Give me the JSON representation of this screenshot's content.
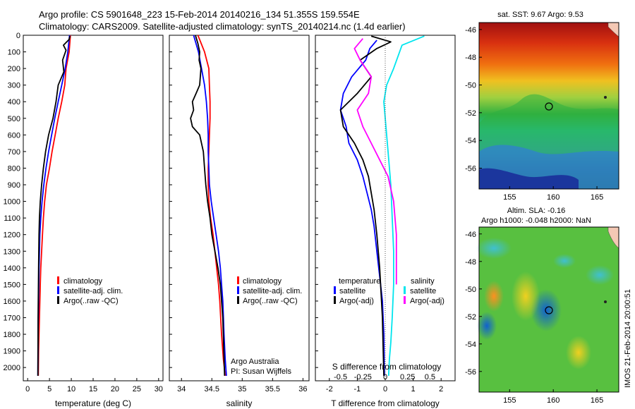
{
  "header": {
    "line1": "Argo profile: CS 5901648_223 15-Feb-2014 20140216_134 51.355S 159.554E",
    "line2": "Climatology: CARS2009. Satellite-adjusted climatology: synTS_20140214.nc (1.4d earlier)"
  },
  "side_label": "IMOS 21-Feb-2014 20:00:51",
  "colors": {
    "climatology": "#ff0000",
    "satellite": "#0000ff",
    "argo": "#000000",
    "salinity_satellite": "#00e5ee",
    "salinity_argo": "#ff00ff"
  },
  "chart_data": [
    {
      "type": "line",
      "panel": "temperature",
      "xlabel": "temperature (deg C)",
      "ylabel": "",
      "xlim": [
        -1,
        31
      ],
      "ylim": [
        2080,
        0
      ],
      "xticks": [
        0,
        5,
        10,
        15,
        20,
        25,
        30
      ],
      "yticks": [
        0,
        100,
        200,
        300,
        400,
        500,
        600,
        700,
        800,
        900,
        1000,
        1100,
        1200,
        1300,
        1400,
        1500,
        1600,
        1700,
        1800,
        1900,
        2000
      ],
      "legend": [
        "climatology",
        "satellite-adj. clim.",
        "Argo(..raw -QC)"
      ],
      "series": [
        {
          "name": "climatology",
          "color": "#ff0000",
          "x": [
            9.8,
            9.5,
            8.8,
            8.5,
            7.8,
            7.0,
            6.3,
            5.6,
            5.0,
            4.3,
            3.9,
            3.6,
            3.4,
            3.2,
            3.0,
            2.9,
            2.8,
            2.7,
            2.6,
            2.5,
            2.45
          ],
          "y": [
            0,
            100,
            200,
            300,
            400,
            500,
            600,
            700,
            800,
            900,
            1000,
            1100,
            1200,
            1300,
            1400,
            1500,
            1600,
            1700,
            1800,
            1900,
            2050
          ]
        },
        {
          "name": "satellite-adj. clim.",
          "color": "#0000ff",
          "x": [
            9.6,
            9.2,
            8.6,
            7.8,
            7.0,
            6.2,
            5.5,
            4.8,
            4.2,
            3.7,
            3.3,
            3.0,
            2.8,
            2.7,
            2.6,
            2.55,
            2.5,
            2.45,
            2.4,
            2.35
          ],
          "y": [
            0,
            100,
            200,
            300,
            400,
            500,
            600,
            700,
            800,
            900,
            1000,
            1100,
            1200,
            1300,
            1400,
            1500,
            1600,
            1700,
            1800,
            2050
          ]
        },
        {
          "name": "Argo(..raw -QC)",
          "color": "#000000",
          "x": [
            9.7,
            9.5,
            8.2,
            8.8,
            8.0,
            8.3,
            7.0,
            6.5,
            5.8,
            4.8,
            4.1,
            3.6,
            3.2,
            2.9,
            2.7,
            2.6,
            2.5,
            2.4,
            2.35
          ],
          "y": [
            5,
            25,
            60,
            90,
            150,
            220,
            300,
            400,
            500,
            600,
            700,
            800,
            900,
            1000,
            1100,
            1200,
            1400,
            1700,
            2050
          ]
        }
      ]
    },
    {
      "type": "line",
      "panel": "salinity",
      "xlabel": "salinity",
      "ylabel": "",
      "xlim": [
        33.8,
        36.1
      ],
      "ylim": [
        2080,
        0
      ],
      "xticks": [
        34,
        34.5,
        35,
        35.5,
        36
      ],
      "legend": [
        "climatology",
        "satellite-adj. clim.",
        "Argo(..raw -QC)"
      ],
      "annotations": [
        "Argo Australia",
        "PI: Susan Wijffels"
      ],
      "series": [
        {
          "name": "climatology",
          "color": "#ff0000",
          "x": [
            34.27,
            34.38,
            34.45,
            34.46,
            34.47,
            34.47,
            34.46,
            34.45,
            34.44,
            34.44,
            34.45,
            34.48,
            34.52,
            34.55,
            34.58,
            34.61,
            34.63,
            34.66,
            34.69,
            34.72
          ],
          "y": [
            0,
            100,
            200,
            300,
            400,
            500,
            600,
            700,
            800,
            900,
            1000,
            1100,
            1200,
            1300,
            1400,
            1500,
            1600,
            1800,
            1950,
            2050
          ]
        },
        {
          "name": "satellite-adj. clim.",
          "color": "#0000ff",
          "x": [
            34.2,
            34.28,
            34.33,
            34.38,
            34.41,
            34.43,
            34.44,
            34.44,
            34.45,
            34.46,
            34.49,
            34.53,
            34.57,
            34.61,
            34.64,
            34.66,
            34.68,
            34.7,
            34.72,
            34.74
          ],
          "y": [
            0,
            100,
            200,
            300,
            400,
            500,
            600,
            700,
            800,
            900,
            1000,
            1100,
            1200,
            1300,
            1400,
            1500,
            1600,
            1800,
            1950,
            2050
          ]
        },
        {
          "name": "Argo(..raw -QC)",
          "color": "#000000",
          "x": [
            34.23,
            34.27,
            34.3,
            34.29,
            34.32,
            34.3,
            34.24,
            34.18,
            34.2,
            34.15,
            34.18,
            34.3,
            34.36,
            34.38,
            34.4,
            34.43,
            34.47,
            34.5,
            34.55,
            34.6,
            34.64,
            34.68,
            34.71
          ],
          "y": [
            0,
            50,
            100,
            150,
            200,
            300,
            350,
            400,
            450,
            500,
            550,
            600,
            700,
            800,
            900,
            1000,
            1100,
            1200,
            1300,
            1400,
            1500,
            1700,
            2050
          ]
        }
      ]
    },
    {
      "type": "line",
      "panel": "difference",
      "xlabel": "T difference from climatology",
      "xlabel_top": "S difference from climatology",
      "ylabel": "",
      "xlim": [
        -2.5,
        2.5
      ],
      "ylim": [
        2080,
        0
      ],
      "xticks": [
        -2,
        -1,
        0,
        1,
        2
      ],
      "xticks_s": [
        "-0.5",
        "-0.25",
        "0",
        "0.25",
        "0.5"
      ],
      "legend_groups": [
        {
          "title": "temperature",
          "items": [
            "satellite",
            "Argo(-adj)"
          ]
        },
        {
          "title": "salinity",
          "items": [
            "satellite",
            "Argo(-adj)"
          ]
        }
      ],
      "series": [
        {
          "name": "temperature satellite",
          "color": "#0000ff",
          "x": [
            -0.3,
            -0.55,
            -0.7,
            -1.2,
            -1.5,
            -1.6,
            -1.4,
            -1.3,
            -1.0,
            -0.8,
            -0.65,
            -0.5,
            -0.4,
            -0.3,
            -0.2,
            -0.1,
            -0.05,
            -0.03
          ],
          "y": [
            30,
            80,
            150,
            250,
            350,
            450,
            550,
            650,
            750,
            850,
            950,
            1050,
            1150,
            1300,
            1450,
            1600,
            1800,
            2050
          ]
        },
        {
          "name": "temperature Argo(-adj)",
          "color": "#000000",
          "x": [
            -0.5,
            0.2,
            -0.3,
            -0.9,
            -0.5,
            -1.0,
            -1.6,
            -1.5,
            -1.1,
            -0.8,
            -0.6,
            -0.5,
            -0.4,
            -0.3,
            -0.2,
            -0.1,
            -0.05
          ],
          "y": [
            5,
            40,
            80,
            150,
            250,
            350,
            450,
            550,
            650,
            750,
            850,
            950,
            1050,
            1200,
            1400,
            1700,
            2050
          ]
        },
        {
          "name": "salinity satellite",
          "color": "#00e5ee",
          "x": [
            1.4,
            0.6,
            0.3,
            0.05,
            -0.05,
            0.0,
            0.05,
            0.1,
            0.2,
            0.25,
            0.3,
            0.3,
            0.25,
            0.2,
            0.15,
            0.12
          ],
          "y": [
            5,
            60,
            200,
            300,
            400,
            500,
            600,
            700,
            900,
            1100,
            1300,
            1500,
            1700,
            1850,
            1950,
            2050
          ]
        },
        {
          "name": "salinity Argo(-adj)",
          "color": "#ff00ff",
          "x": [
            -0.8,
            -1.1,
            -0.9,
            -0.5,
            -0.6,
            -1.0,
            -0.8,
            -0.5,
            -0.2,
            0.1,
            0.3,
            0.4,
            0.4
          ],
          "y": [
            20,
            80,
            150,
            250,
            350,
            450,
            550,
            650,
            750,
            850,
            1000,
            1200,
            1500
          ]
        }
      ]
    },
    {
      "type": "heatmap",
      "panel": "sst-map",
      "title": "sat. SST: 9.67 Argo: 9.53",
      "xlim": [
        151.5,
        167.5
      ],
      "ylim": [
        -57.5,
        -45.5
      ],
      "xticks": [
        155,
        160,
        165
      ],
      "yticks": [
        -46,
        -48,
        -50,
        -52,
        -54,
        -56
      ],
      "marker": {
        "lon": 159.554,
        "lat": -51.355
      }
    },
    {
      "type": "heatmap",
      "panel": "sla-map",
      "title_lines": [
        "Altim. SLA: -0.16",
        "Argo h1000: -0.048 h2000: NaN"
      ],
      "xlim": [
        151.5,
        167.5
      ],
      "ylim": [
        -57.5,
        -45.5
      ],
      "xticks": [
        155,
        160,
        165
      ],
      "yticks": [
        -46,
        -48,
        -50,
        -52,
        -54,
        -56
      ],
      "marker": {
        "lon": 159.554,
        "lat": -51.355
      }
    }
  ]
}
